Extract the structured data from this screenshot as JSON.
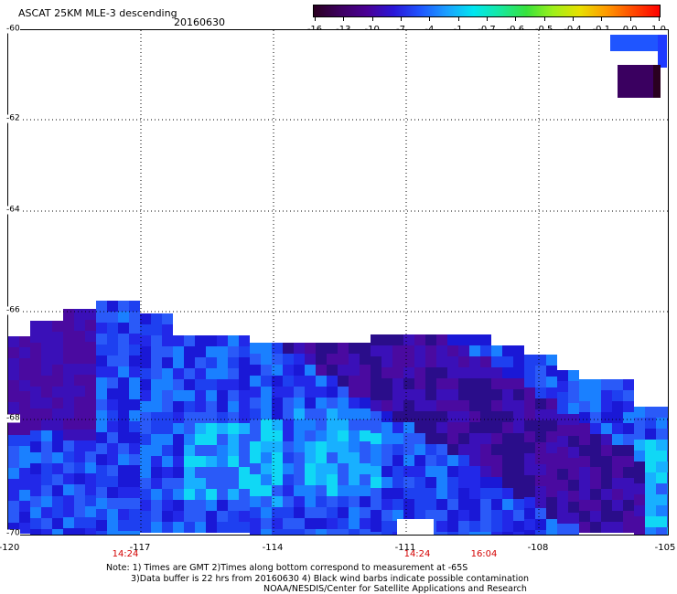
{
  "header": {
    "title": "ASCAT 25KM MLE-3 descending",
    "date": "20160630"
  },
  "colorbar": {
    "ticks": [
      "-16",
      "-13",
      "-10",
      "-7",
      "-4",
      "-1",
      "-0.7",
      "-0.6",
      "-0.5",
      "-0.4",
      "-0.1",
      "0.0",
      "1.0"
    ],
    "colors": [
      "#2a0020",
      "#3d0060",
      "#4a0095",
      "#2a16d8",
      "#1f55ff",
      "#1aa0ff",
      "#00e6f0",
      "#16e8a0",
      "#38e23c",
      "#9ef01a",
      "#e8e000",
      "#ff9a00",
      "#ff4a00",
      "#ff0000"
    ]
  },
  "axes": {
    "lat_labels": [
      "-60",
      "-62",
      "-64",
      "-66",
      "-68",
      "-70"
    ],
    "lon_labels": [
      "-120",
      "-117",
      "-114",
      "-111",
      "-108",
      "-105"
    ],
    "times": [
      "14:24",
      "14:24",
      "16:04"
    ]
  },
  "notes": {
    "line1": "Note: 1) Times are GMT 2)Times along bottom correspond to measurement at -65S",
    "line2": "3)Data buffer is 22 hrs from 20160630 4) Black wind barbs indicate possible contamination",
    "line3": "NOAA/NESDIS/Center for Satellite Applications and Research"
  }
}
